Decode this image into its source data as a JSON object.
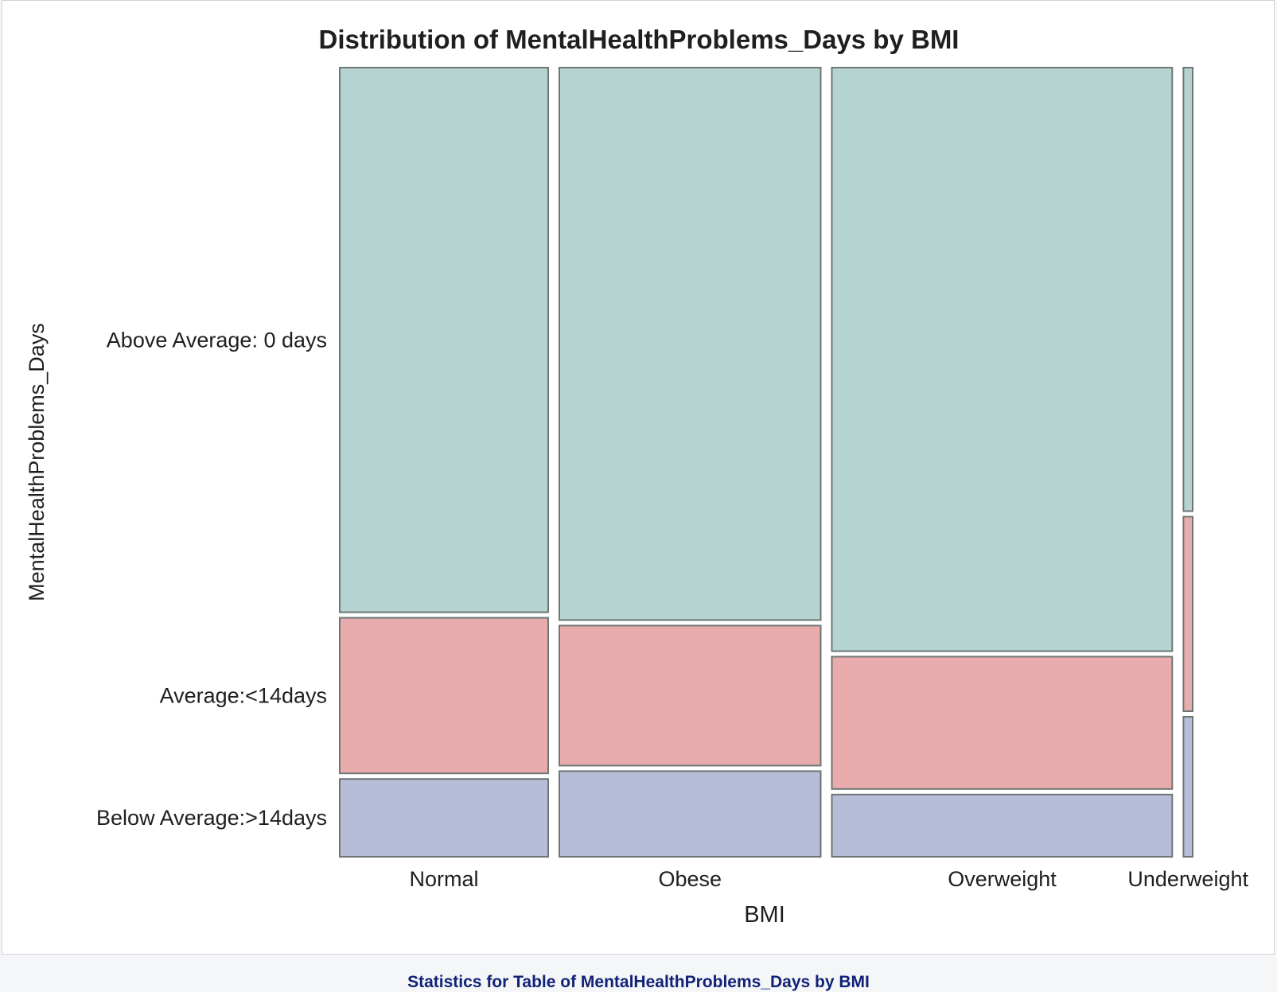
{
  "chart_data": {
    "type": "mosaic",
    "title": "Distribution of MentalHealthProblems_Days by BMI",
    "xlabel": "BMI",
    "ylabel": "MentalHealthProblems_Days",
    "categories": [
      "Normal",
      "Obese",
      "Overweight",
      "Underweight"
    ],
    "category_widths": [
      0.248,
      0.311,
      0.405,
      0.011
    ],
    "series": [
      {
        "name": "Below Average:>14days",
        "color": "#b7bdd9",
        "values": [
          0.1,
          0.11,
          0.08,
          0.18
        ]
      },
      {
        "name": "Average:<14days",
        "color": "#e8acac",
        "values": [
          0.2,
          0.18,
          0.17,
          0.25
        ]
      },
      {
        "name": "Above Average: 0 days",
        "color": "#b5d3d1",
        "values": [
          0.7,
          0.71,
          0.75,
          0.57
        ]
      }
    ],
    "ylim": [
      0,
      1
    ],
    "legend": "none",
    "grid": false
  },
  "footer": {
    "title": "Statistics for Table of MentalHealthProblems_Days by BMI"
  },
  "colors": {
    "stroke": "#6e7676",
    "footer_text": "#112277"
  }
}
